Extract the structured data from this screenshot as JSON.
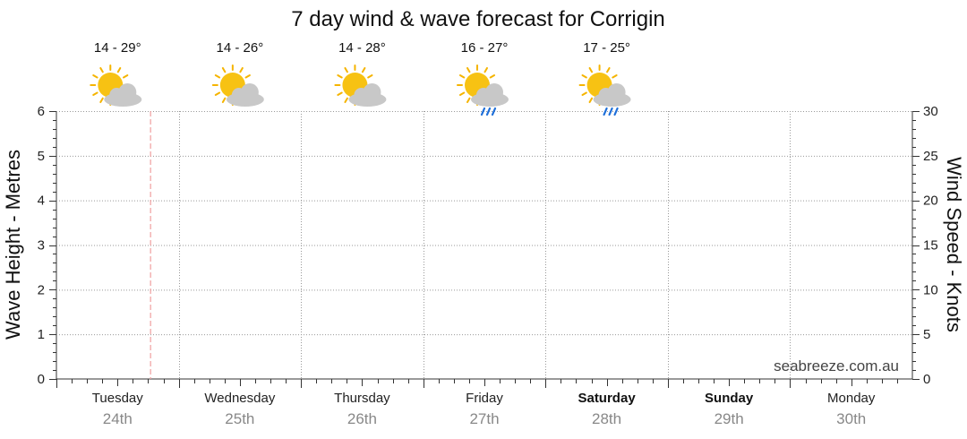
{
  "chart_data": {
    "type": "line",
    "title": "7 day wind & wave forecast for Corrigin",
    "ylabel_left": "Wave Height - Metres",
    "ylabel_right": "Wind Speed - Knots",
    "ylim_left": [
      0,
      6
    ],
    "ylim_right": [
      0,
      30
    ],
    "yticks_left": [
      "0",
      "1",
      "2",
      "3",
      "4",
      "5",
      "6"
    ],
    "yticks_right": [
      "0",
      "5",
      "10",
      "15",
      "20",
      "25",
      "30"
    ],
    "grid": true,
    "days": [
      {
        "name": "Tuesday",
        "date": "24th",
        "bold": false
      },
      {
        "name": "Wednesday",
        "date": "25th",
        "bold": false
      },
      {
        "name": "Thursday",
        "date": "26th",
        "bold": false
      },
      {
        "name": "Friday",
        "date": "27th",
        "bold": false
      },
      {
        "name": "Saturday",
        "date": "28th",
        "bold": true
      },
      {
        "name": "Sunday",
        "date": "29th",
        "bold": true
      },
      {
        "name": "Monday",
        "date": "30th",
        "bold": false
      }
    ],
    "forecast": [
      {
        "temps": "14 - 29°",
        "icon": "partly-cloudy-icon"
      },
      {
        "temps": "14 - 26°",
        "icon": "partly-cloudy-icon"
      },
      {
        "temps": "14 - 28°",
        "icon": "partly-cloudy-icon"
      },
      {
        "temps": "16 - 27°",
        "icon": "partly-cloudy-showers-icon"
      },
      {
        "temps": "17 - 25°",
        "icon": "partly-cloudy-showers-icon"
      }
    ],
    "series": [],
    "now_marker_day_fraction": 0.77,
    "watermark": "seabreeze.com.au"
  },
  "colors": {
    "grid": "#999999",
    "now_marker": "#f0a0a0",
    "sun": "#f7c213",
    "sun_rays": "#f5b400",
    "cloud": "#c8c8c8",
    "rain": "#1e6fd9"
  }
}
